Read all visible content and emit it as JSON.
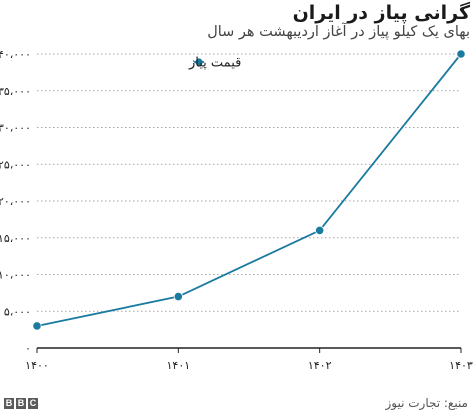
{
  "header": {
    "title": "گرانی پیاز در ایران",
    "subtitle": "بهای یک کیلو پیاز در آغاز اردیبهشت هر سال"
  },
  "footer": {
    "logo_letters": [
      "B",
      "B",
      "C"
    ],
    "source": "منبع: تجارت نیوز"
  },
  "colors": {
    "series": "#1a7aa0",
    "axis": "#222222",
    "grid": "#a6a6a6",
    "text": "#222222"
  },
  "chart_data": {
    "type": "line",
    "categories": [
      "۱۴۰۰",
      "۱۴۰۱",
      "۱۴۰۲",
      "۱۴۰۳"
    ],
    "series": [
      {
        "name": "قیمت پیاز",
        "values": [
          3000,
          7000,
          16000,
          40000
        ]
      }
    ],
    "ylim": [
      0,
      40000
    ],
    "yticks": [
      0,
      5000,
      10000,
      15000,
      20000,
      25000,
      30000,
      35000,
      40000
    ],
    "ytick_labels": [
      "۰",
      "۵،۰۰۰",
      "۱۰،۰۰۰",
      "۱۵،۰۰۰",
      "۲۰،۰۰۰",
      "۲۵،۰۰۰",
      "۳۰،۰۰۰",
      "۳۵،۰۰۰",
      "۴۰،۰۰۰"
    ],
    "grid": "horizontal dotted",
    "legend": "top-center"
  }
}
